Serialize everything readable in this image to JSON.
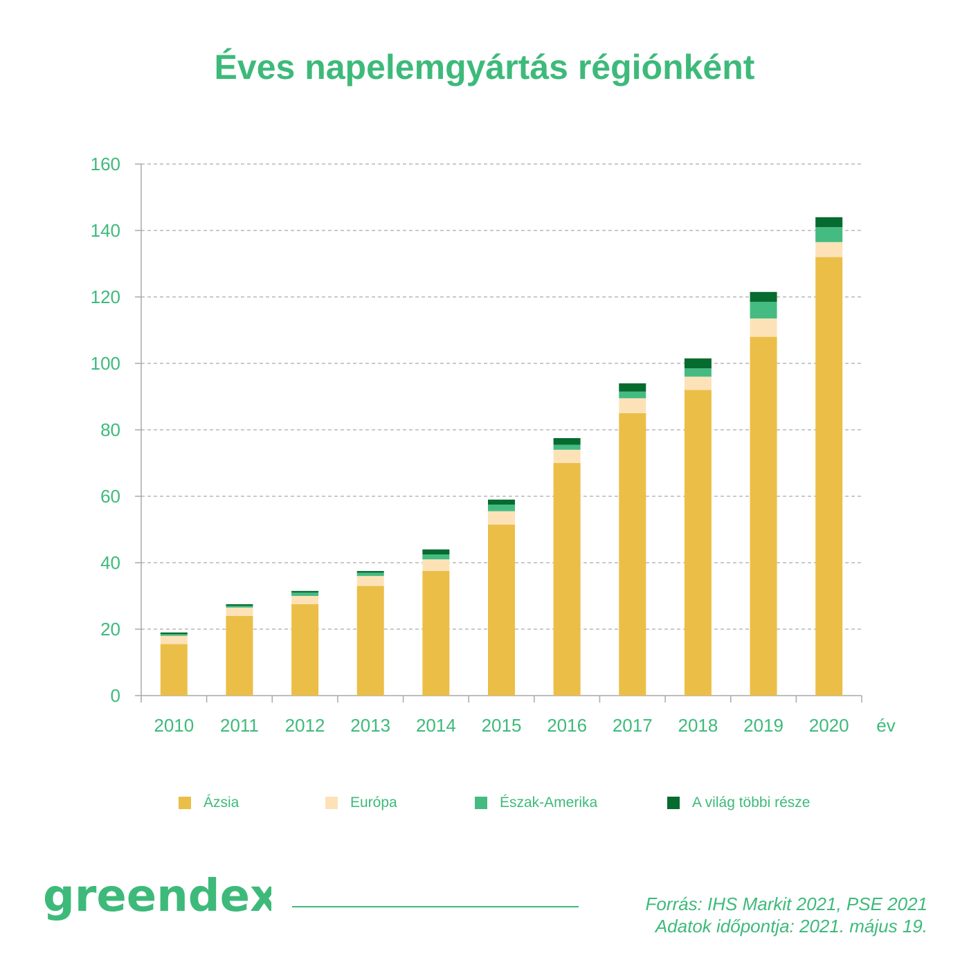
{
  "chart_data": {
    "type": "bar",
    "stacked": true,
    "title": "Éves napelemgyártás régiónként",
    "xlabel": "év",
    "ylabel": "",
    "ylim": [
      0,
      160
    ],
    "yticks": [
      0,
      20,
      40,
      60,
      80,
      100,
      120,
      140,
      160
    ],
    "grid": true,
    "legend_position": "bottom",
    "categories": [
      "2010",
      "2011",
      "2012",
      "2013",
      "2014",
      "2015",
      "2016",
      "2017",
      "2018",
      "2019",
      "2020"
    ],
    "series": [
      {
        "name": "Ázsia",
        "color": "#ebbe47",
        "values": [
          15.5,
          24,
          27.5,
          33,
          37.5,
          51.5,
          70,
          85,
          92,
          108,
          132
        ]
      },
      {
        "name": "Európa",
        "color": "#fde2b8",
        "values": [
          2.5,
          2.5,
          2.5,
          3,
          3.5,
          4,
          4,
          4.5,
          4,
          5.5,
          4.5
        ]
      },
      {
        "name": "Észak-Amerika",
        "color": "#45bb82",
        "values": [
          0.5,
          0.5,
          1,
          1,
          1.5,
          2,
          1.5,
          2,
          2.5,
          5,
          4.5
        ]
      },
      {
        "name": "A világ többi része",
        "color": "#066b2f",
        "values": [
          0.5,
          0.5,
          0.5,
          0.5,
          1.5,
          1.5,
          2,
          2.5,
          3,
          3,
          3
        ]
      }
    ]
  },
  "colors": {
    "accent": "#3dba7a",
    "grid": "#a9a9a9",
    "axis": "#a9a9a9"
  },
  "brand": {
    "logo": "greendex"
  },
  "source": {
    "line1": "Forrás: IHS Markit 2021, PSE 2021",
    "line2": "Adatok időpontja: 2021. május 19."
  }
}
